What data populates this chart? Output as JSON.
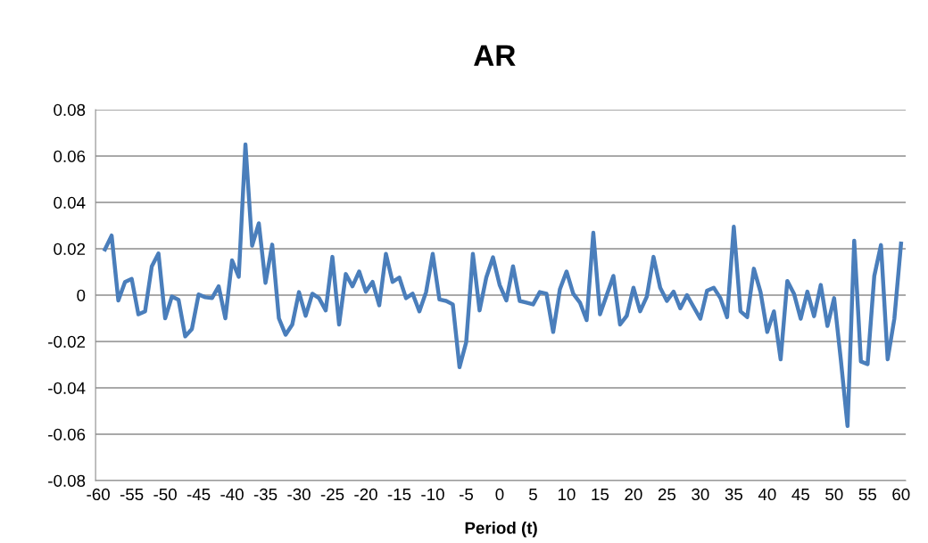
{
  "chart_data": {
    "type": "line",
    "title": "AR",
    "xlabel": "Period (t)",
    "x": [
      -59,
      -58,
      -57,
      -56,
      -55,
      -54,
      -53,
      -52,
      -51,
      -50,
      -49,
      -48,
      -47,
      -46,
      -45,
      -44,
      -43,
      -42,
      -41,
      -40,
      -39,
      -38,
      -37,
      -36,
      -35,
      -34,
      -33,
      -32,
      -31,
      -30,
      -29,
      -28,
      -27,
      -26,
      -25,
      -24,
      -23,
      -22,
      -21,
      -20,
      -19,
      -18,
      -17,
      -16,
      -15,
      -14,
      -13,
      -12,
      -11,
      -10,
      -9,
      -8,
      -7,
      -6,
      -5,
      -4,
      -3,
      -2,
      -1,
      0,
      1,
      2,
      3,
      4,
      5,
      6,
      7,
      8,
      9,
      10,
      11,
      12,
      13,
      14,
      15,
      16,
      17,
      18,
      19,
      20,
      21,
      22,
      23,
      24,
      25,
      26,
      27,
      28,
      29,
      30,
      31,
      32,
      33,
      34,
      35,
      36,
      37,
      38,
      39,
      40,
      41,
      42,
      43,
      44,
      45,
      46,
      47,
      48,
      49,
      50,
      51,
      52,
      53,
      54,
      55,
      56,
      57,
      58,
      59,
      60
    ],
    "series": [
      {
        "color": "#4a7ebb",
        "values": [
          0.0197,
          0.0257,
          -0.0023,
          0.0057,
          0.007,
          -0.0083,
          -0.007,
          0.0124,
          0.018,
          -0.01,
          -0.0006,
          -0.002,
          -0.0178,
          -0.0146,
          0.0003,
          -0.0009,
          -0.0013,
          0.0038,
          -0.01,
          0.015,
          0.0079,
          0.065,
          0.0213,
          0.031,
          0.0053,
          0.0218,
          -0.01,
          -0.0171,
          -0.0127,
          0.0013,
          -0.0089,
          0.0006,
          -0.0013,
          -0.0066,
          0.0165,
          -0.0127,
          0.0091,
          0.0038,
          0.0102,
          0.0015,
          0.0057,
          -0.0044,
          0.0178,
          0.0057,
          0.0076,
          -0.0013,
          0.0006,
          -0.007,
          0.0013,
          0.0178,
          -0.0019,
          -0.0025,
          -0.004,
          -0.0311,
          -0.0203,
          0.0178,
          -0.0066,
          0.0076,
          0.0163,
          0.0044,
          -0.0023,
          0.0124,
          -0.0025,
          -0.0032,
          -0.004,
          0.0013,
          0.0006,
          -0.0159,
          0.0025,
          0.0102,
          0.0006,
          -0.0032,
          -0.0108,
          0.0269,
          -0.0083,
          0.0,
          0.0083,
          -0.0127,
          -0.0089,
          0.0032,
          -0.007,
          -0.0006,
          0.0165,
          0.0032,
          -0.0025,
          0.0015,
          -0.0057,
          0.0,
          -0.0051,
          -0.0102,
          0.0019,
          0.0032,
          -0.0013,
          -0.0095,
          0.0295,
          -0.007,
          -0.0095,
          0.0114,
          0.0013,
          -0.0159,
          -0.007,
          -0.0277,
          0.0061,
          0.0006,
          -0.0102,
          0.0015,
          -0.0091,
          0.0044,
          -0.0133,
          -0.0013,
          -0.0279,
          -0.0565,
          0.0235,
          -0.0286,
          -0.0298,
          0.0083,
          0.0216,
          -0.0277,
          -0.0102,
          0.0222
        ]
      }
    ],
    "xlim": [
      -60.4,
      60.7
    ],
    "xticks": [
      -60,
      -55,
      -50,
      -45,
      -40,
      -35,
      -30,
      -25,
      -20,
      -15,
      -10,
      -5,
      0,
      5,
      10,
      15,
      20,
      25,
      30,
      35,
      40,
      45,
      50,
      55,
      60
    ],
    "ylim": [
      -0.08,
      0.08
    ],
    "yticks": [
      -0.08,
      -0.06,
      -0.04,
      -0.02,
      0,
      0.02,
      0.04,
      0.06,
      0.08
    ],
    "grid": "y",
    "marker": "none",
    "line_style": "solid"
  }
}
